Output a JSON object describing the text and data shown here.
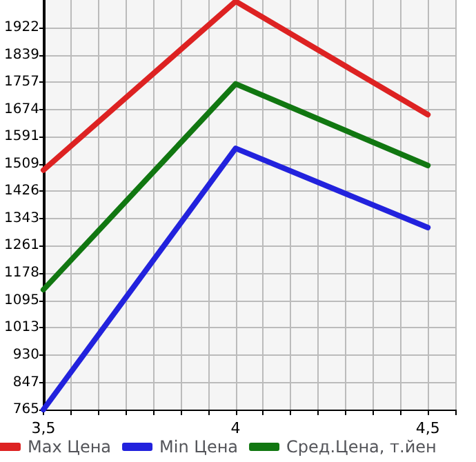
{
  "chart_data": {
    "type": "line",
    "x": [
      3.5,
      4,
      4.5
    ],
    "series": [
      {
        "name": "Max Цена",
        "color": "#dd2222",
        "values": [
          1490,
          2001,
          1658
        ]
      },
      {
        "name": "Min Цена",
        "color": "#2222dd",
        "values": [
          765,
          1556,
          1316
        ]
      },
      {
        "name": "Сред.Цена, т.йен",
        "color": "#117711",
        "values": [
          1128,
          1751,
          1504
        ]
      }
    ],
    "xlim": [
      3.5,
      4.5714
    ],
    "xticks": [
      {
        "value": 3.5,
        "label": "3,5"
      },
      {
        "value": 3.5714,
        "label": null
      },
      {
        "value": 3.6429,
        "label": null
      },
      {
        "value": 3.7143,
        "label": null
      },
      {
        "value": 3.7857,
        "label": null
      },
      {
        "value": 3.8571,
        "label": null
      },
      {
        "value": 3.9286,
        "label": null
      },
      {
        "value": 4,
        "label": "4"
      },
      {
        "value": 4.0714,
        "label": null
      },
      {
        "value": 4.1429,
        "label": null
      },
      {
        "value": 4.2143,
        "label": null
      },
      {
        "value": 4.2857,
        "label": null
      },
      {
        "value": 4.3571,
        "label": null
      },
      {
        "value": 4.4286,
        "label": null
      },
      {
        "value": 4.5,
        "label": "4,5"
      },
      {
        "value": 4.5714,
        "label": null
      }
    ],
    "ylim": [
      765,
      2005
    ],
    "yticks": [
      765,
      847,
      930,
      1013,
      1095,
      1178,
      1261,
      1343,
      1426,
      1509,
      1591,
      1674,
      1757,
      1839,
      1922
    ],
    "grid": true,
    "legend": "bottom",
    "marker": "none",
    "line_style": "solid"
  }
}
